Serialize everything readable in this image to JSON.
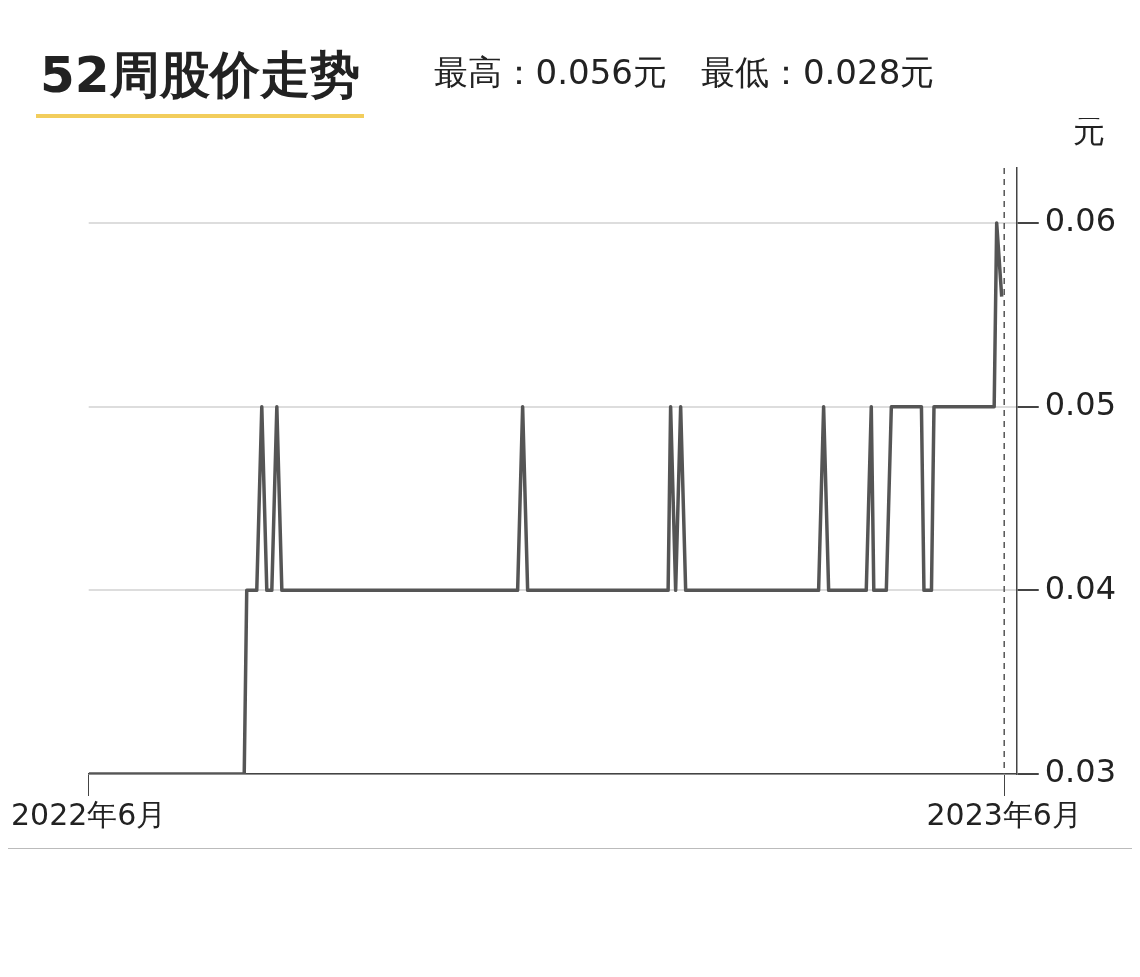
{
  "chart_data": {
    "type": "line",
    "title": "52周股价走势",
    "subtitle": "最高：0.056元　最低：0.028元",
    "ylabel": "元",
    "xlim": [
      "2022-06-01",
      "2023-06-06"
    ],
    "xticks": [
      {
        "value": "2022-06",
        "label": "2022年6月"
      },
      {
        "value": "2023-06",
        "label": "2023年6月"
      }
    ],
    "ylim": [
      0.03,
      0.063
    ],
    "yticks": [
      0.03,
      0.04,
      0.05,
      0.06
    ],
    "grid": "y",
    "legend": false,
    "marker": "none",
    "line_style": "solid",
    "ref_lines": [
      {
        "axis": "x",
        "value": "2023-06-01",
        "label": null,
        "color": "#555555",
        "line_style": "dashed"
      }
    ],
    "series": [
      {
        "color": "#555555",
        "x": [
          "2022-06-01",
          "2022-08-02",
          "2022-08-03",
          "2022-08-07",
          "2022-08-09",
          "2022-08-11",
          "2022-08-13",
          "2022-08-15",
          "2022-08-17",
          "2022-11-19",
          "2022-11-21",
          "2022-11-23",
          "2023-01-18",
          "2023-01-19",
          "2023-01-21",
          "2023-01-23",
          "2023-01-25",
          "2023-03-19",
          "2023-03-21",
          "2023-03-23",
          "2023-04-07",
          "2023-04-09",
          "2023-04-10",
          "2023-04-15",
          "2023-04-17",
          "2023-04-29",
          "2023-04-30",
          "2023-05-03",
          "2023-05-04",
          "2023-05-28",
          "2023-05-29",
          "2023-05-31"
        ],
        "values": [
          0.03,
          0.03,
          0.04,
          0.04,
          0.05,
          0.04,
          0.04,
          0.05,
          0.04,
          0.04,
          0.05,
          0.04,
          0.04,
          0.05,
          0.04,
          0.05,
          0.04,
          0.04,
          0.05,
          0.04,
          0.04,
          0.05,
          0.04,
          0.04,
          0.05,
          0.05,
          0.04,
          0.04,
          0.05,
          0.05,
          0.06,
          0.056
        ]
      }
    ]
  }
}
